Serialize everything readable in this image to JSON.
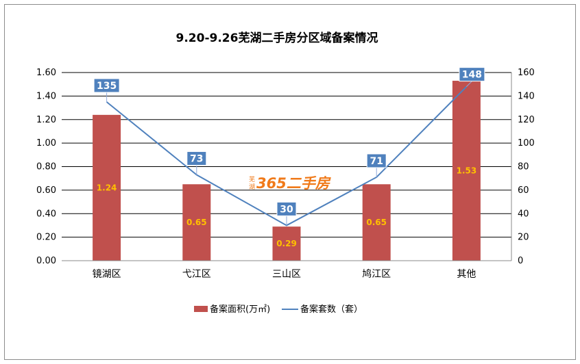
{
  "chart_data": {
    "type": "bar",
    "title": "9.20-9.26芜湖二手房分区域备案情况",
    "categories": [
      "镜湖区",
      "弋江区",
      "三山区",
      "鸠江区",
      "其他"
    ],
    "series": [
      {
        "name": "备案面积(万㎡)",
        "type": "bar",
        "axis": "left",
        "color": "#C0504D",
        "values": [
          1.24,
          0.65,
          0.29,
          0.65,
          1.53
        ]
      },
      {
        "name": "备案套数（套）",
        "type": "line",
        "axis": "right",
        "color": "#4F81BD",
        "values": [
          135,
          73,
          30,
          71,
          148
        ]
      }
    ],
    "y_left": {
      "min": 0,
      "max": 1.6,
      "step": 0.2,
      "ticks": [
        "0.00",
        "0.20",
        "0.40",
        "0.60",
        "0.80",
        "1.00",
        "1.20",
        "1.40",
        "1.60"
      ]
    },
    "y_right": {
      "min": 0,
      "max": 160,
      "step": 20,
      "ticks": [
        "0",
        "20",
        "40",
        "60",
        "80",
        "100",
        "120",
        "140",
        "160"
      ]
    },
    "bar_labels": [
      "1.24",
      "0.65",
      "0.29",
      "0.65",
      "1.53"
    ],
    "line_labels": [
      "135",
      "73",
      "30",
      "71",
      "148"
    ],
    "grid": true,
    "legend_position": "bottom",
    "label_box_color": "#4F81BD",
    "bar_label_color": "#FFC000"
  },
  "watermark": {
    "brand": "365二手房",
    "city_top": "芜",
    "city_bottom": "湖"
  }
}
